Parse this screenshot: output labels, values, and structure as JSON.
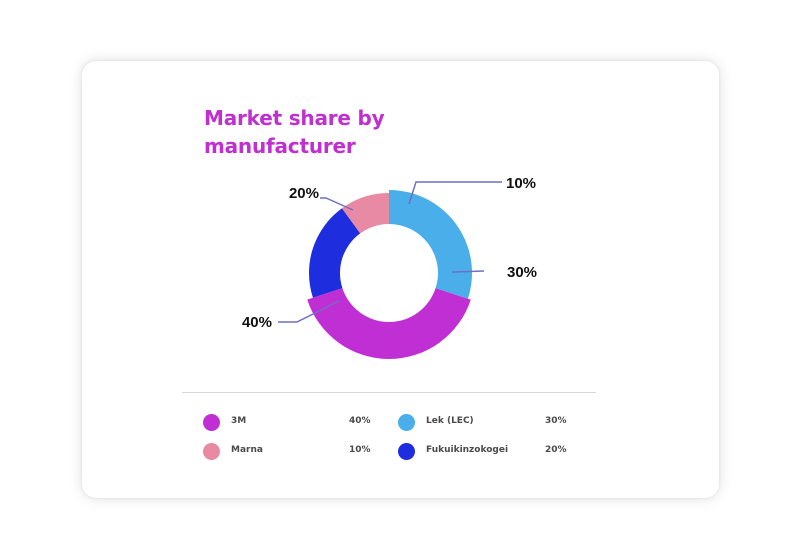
{
  "chart_data": {
    "type": "pie",
    "title": "Market share by manufacturer",
    "donut": true,
    "categories": [
      "Lek (LEC)",
      "3M",
      "Fukuikinzokogei",
      "Marna"
    ],
    "values": [
      30,
      40,
      20,
      10
    ],
    "unit": "%",
    "data_labels": [
      "30%",
      "40%",
      "20%",
      "10%"
    ],
    "colors": [
      "#4aaeea",
      "#c02fd3",
      "#1e2ede",
      "#e98aa4"
    ]
  },
  "legend": [
    {
      "label": "3M",
      "value": "40%",
      "color": "#c02fd3"
    },
    {
      "label": "Marna",
      "value": "10%",
      "color": "#e98aa4"
    },
    {
      "label": "Lek (LEC)",
      "value": "30%",
      "color": "#4aaeea"
    },
    {
      "label": "Fukuikinzokogei",
      "value": "20%",
      "color": "#1e2ede"
    }
  ]
}
